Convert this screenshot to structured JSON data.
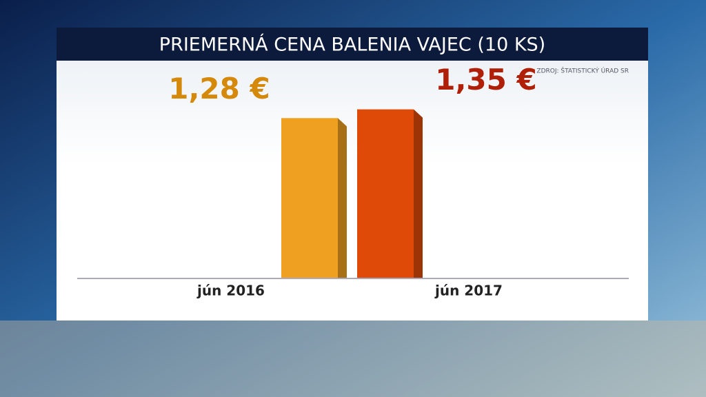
{
  "chart_data": {
    "type": "bar",
    "title": "PRIEMERNÁ CENA BALENIA VAJEC (10 KS)",
    "source": "ZDROJ: ŠTATISTICKÝ ÚRAD SR",
    "categories": [
      "jún 2016",
      "jún 2017"
    ],
    "values": [
      1.28,
      1.35
    ],
    "value_labels": [
      "1,28 €",
      "1,35 €"
    ],
    "colors": [
      "#f0a020",
      "#e04a08"
    ],
    "label_colors": [
      "#d4890a",
      "#b02008"
    ]
  }
}
